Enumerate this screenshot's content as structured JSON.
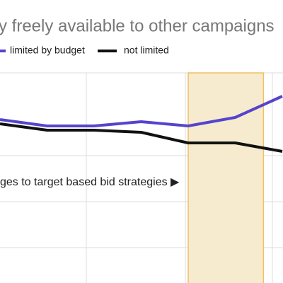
{
  "chart_data": {
    "type": "line",
    "title": "y freely available to other campaigns",
    "annotation": "ges to target based bid strategies ▶",
    "categories": [
      null,
      null,
      null,
      null,
      null,
      null,
      null
    ],
    "ylim": [
      0,
      100
    ],
    "highlight": [
      4,
      5.6
    ],
    "highlight_color": "#f7ebcf",
    "series": [
      {
        "name": "limited by budget",
        "color": "#5544cc",
        "values": [
          77,
          74,
          74,
          76,
          74,
          78,
          88
        ]
      },
      {
        "name": "not limited",
        "color": "#111111",
        "values": [
          75,
          72,
          72,
          71,
          66,
          66,
          62
        ]
      }
    ]
  }
}
